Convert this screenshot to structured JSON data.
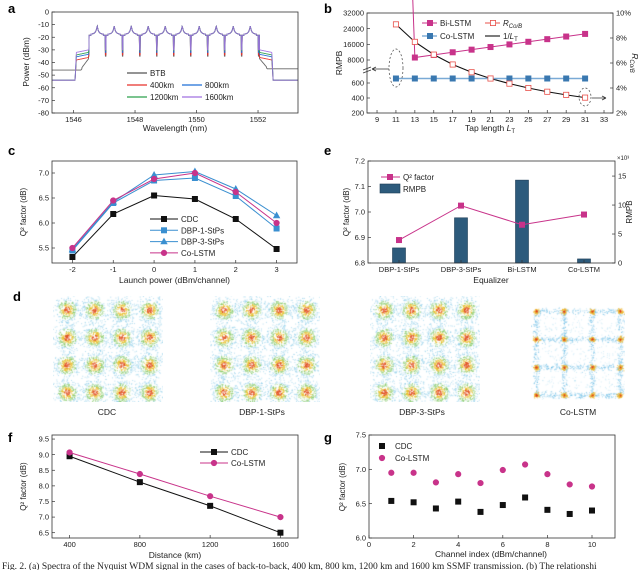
{
  "panel_labels": {
    "a": "a",
    "b": "b",
    "c": "c",
    "d": "d",
    "e": "e",
    "f": "f",
    "g": "g"
  },
  "caption": "Fig. 2. (a) Spectra of the Nyquist WDM signal in the cases of back-to-back, 400 km, 800 km, 1200 km and 1600 km SSMF transmission. (b) The relationshi",
  "chart_data": [
    {
      "panel": "a",
      "type": "line",
      "xlabel": "Wavelength (nm)",
      "ylabel": "Power (dBm)",
      "xlim": [
        1545.3,
        1553.3
      ],
      "ylim": [
        -80,
        0
      ],
      "xticks": [
        "1546",
        "1548",
        "1550",
        "1552"
      ],
      "yticks": [
        "0",
        "-10",
        "-20",
        "-30",
        "-40",
        "-50",
        "-60",
        "-70",
        "-80"
      ],
      "legend_placement": "bottom-center",
      "channel_count": 10,
      "channel_peak_dbm": -11,
      "channel_plateau_dbm": -17.5,
      "band_nm": [
        1546.49,
        1552.05
      ],
      "series": [
        {
          "name": "BTB",
          "color": "#555555",
          "floor_dbm": -46,
          "shoulder_dbm": -37,
          "notch_dbm": -35
        },
        {
          "name": "400km",
          "color": "#e8302a",
          "floor_dbm": -54,
          "shoulder_dbm": -36,
          "notch_dbm": -34
        },
        {
          "name": "800km",
          "color": "#1f6fd6",
          "floor_dbm": -54,
          "shoulder_dbm": -33.5,
          "notch_dbm": -32
        },
        {
          "name": "1200km",
          "color": "#2ca04c",
          "floor_dbm": -54,
          "shoulder_dbm": -32,
          "notch_dbm": -30.5
        },
        {
          "name": "1600km",
          "color": "#a070e0",
          "floor_dbm": -54,
          "shoulder_dbm": -30,
          "notch_dbm": -30
        }
      ]
    },
    {
      "panel": "b",
      "type": "line",
      "xlabel_main": "Tap length ",
      "xlabel_var": "L",
      "xlabel_sub": "T",
      "ylabel_left": "RMPB",
      "ylabel_right_main": "R",
      "ylabel_right_sub": "Co/B",
      "x": [
        11,
        13,
        15,
        17,
        19,
        21,
        23,
        25,
        27,
        29,
        31
      ],
      "xticks": [
        "9",
        "11",
        "13",
        "15",
        "17",
        "19",
        "21",
        "23",
        "25",
        "27",
        "29",
        "31",
        "33"
      ],
      "yticks_left": [
        "200",
        "400",
        "600",
        "8000",
        "16000",
        "24000",
        "32000"
      ],
      "yticks_right": [
        "2%",
        "4%",
        "6%",
        "8%",
        "10%"
      ],
      "ylim_right": [
        2,
        10
      ],
      "left_axis_break": [
        700,
        8000
      ],
      "legend_placement": "top",
      "series": [
        {
          "name": "Bi-LSTM",
          "axis": "left",
          "color": "#c8338a",
          "values": [
            7920,
            9260,
            10600,
            11940,
            13280,
            14620,
            15960,
            17300,
            18640,
            19980,
            21320
          ]
        },
        {
          "name": "Co-LSTM",
          "axis": "left",
          "color": "#3a78b0",
          "values": [
            660,
            660,
            660,
            660,
            660,
            660,
            660,
            660,
            660,
            660,
            660
          ]
        },
        {
          "name_main": "R",
          "name_sub": "Co/B",
          "axis": "right",
          "color": "#e8504a",
          "values": [
            9.09,
            7.69,
            6.67,
            5.88,
            5.26,
            4.76,
            4.35,
            4.0,
            3.7,
            3.45,
            3.23
          ]
        },
        {
          "name_main": "1/",
          "name_var": "L",
          "name_sub": "T",
          "axis": "right",
          "color": "#111111",
          "values": [
            9.09,
            7.69,
            6.67,
            5.88,
            5.26,
            4.76,
            4.35,
            4.0,
            3.7,
            3.45,
            3.23
          ]
        }
      ]
    },
    {
      "panel": "c",
      "type": "line",
      "xlabel": "Launch power (dBm/channel)",
      "ylabel": "Q² factor (dB)",
      "x": [
        -2,
        -1,
        0,
        1,
        2,
        3
      ],
      "xticks": [
        "-2",
        "-1",
        "0",
        "1",
        "2",
        "3"
      ],
      "yticks": [
        "5.5",
        "6.0",
        "6.5",
        "7.0"
      ],
      "xlim": [
        -2.5,
        3.5
      ],
      "ylim": [
        5.2,
        7.24
      ],
      "legend_placement": "bottom-center",
      "series": [
        {
          "name": "CDC",
          "color": "#111111",
          "marker": "square",
          "values": [
            5.32,
            6.18,
            6.55,
            6.48,
            6.08,
            5.48
          ]
        },
        {
          "name": "DBP-1-StPs",
          "color": "#3a8fd0",
          "marker": "square",
          "values": [
            5.45,
            6.4,
            6.85,
            6.9,
            6.54,
            5.89
          ]
        },
        {
          "name": "DBP-3-StPs",
          "color": "#3a8fd0",
          "marker": "triangle",
          "values": [
            5.47,
            6.42,
            6.96,
            7.03,
            6.68,
            6.15
          ]
        },
        {
          "name": "Co-LSTM",
          "color": "#c8338a",
          "marker": "circle",
          "values": [
            5.5,
            6.45,
            6.88,
            7.0,
            6.62,
            6.0
          ]
        }
      ]
    },
    {
      "panel": "d",
      "type": "scatter",
      "constellations": [
        {
          "label": "CDC"
        },
        {
          "label": "DBP-1-StPs"
        },
        {
          "label": "DBP-3-StPs"
        },
        {
          "label": "Co-LSTM"
        }
      ]
    },
    {
      "panel": "e",
      "type": "bar",
      "xlabel": "Equalizer",
      "ylabel_left": "Q² factor (dB)",
      "ylabel_right": "RMPB",
      "right_multiplier": "×10³",
      "categories": [
        "DBP-1-StPs",
        "DBP-3-StPs",
        "Bi-LSTM",
        "Co-LSTM"
      ],
      "yticks_left": [
        "6.8",
        "6.9",
        "7.0",
        "7.1",
        "7.2"
      ],
      "yticks_right": [
        "0",
        "5",
        "10",
        "15"
      ],
      "ylim_left": [
        6.8,
        7.2
      ],
      "ylim_right": [
        0,
        17.6
      ],
      "legend_placement": "top-left",
      "series": [
        {
          "name": "Q² factor",
          "type": "line",
          "color": "#c8338a",
          "values": [
            6.89,
            7.025,
            6.95,
            6.99
          ]
        },
        {
          "name": "RMPB",
          "type": "bar",
          "color": "#2d5b7c",
          "values": [
            2.6,
            7.8,
            14.3,
            0.7
          ]
        }
      ]
    },
    {
      "panel": "f",
      "type": "line",
      "xlabel": "Distance (km)",
      "ylabel": "Q² factor (dB)",
      "x": [
        400,
        800,
        1200,
        1600
      ],
      "xticks": [
        "400",
        "800",
        "1200",
        "1600"
      ],
      "yticks": [
        "6.5",
        "7.0",
        "7.5",
        "8.0",
        "8.5",
        "9.0",
        "9.5"
      ],
      "xlim": [
        300,
        1700
      ],
      "ylim": [
        6.33,
        9.63
      ],
      "legend_placement": "top-right",
      "series": [
        {
          "name": "CDC",
          "color": "#111111",
          "marker": "square",
          "values": [
            8.95,
            8.12,
            7.36,
            6.5
          ]
        },
        {
          "name": "Co-LSTM",
          "color": "#c8338a",
          "marker": "circle",
          "values": [
            9.07,
            8.38,
            7.67,
            7.0
          ]
        }
      ]
    },
    {
      "panel": "g",
      "type": "scatter",
      "xlabel": "Channel index (dBm/channel)",
      "ylabel": "Q² factor (dB)",
      "x": [
        1,
        2,
        3,
        4,
        5,
        6,
        7,
        8,
        9,
        10
      ],
      "xticks": [
        "0",
        "2",
        "4",
        "6",
        "8",
        "10"
      ],
      "yticks": [
        "6.0",
        "6.5",
        "7.0",
        "7.5"
      ],
      "xlim": [
        0,
        11
      ],
      "ylim": [
        6.0,
        7.5
      ],
      "legend_placement": "top-left",
      "series": [
        {
          "name": "CDC",
          "color": "#111111",
          "marker": "square",
          "values": [
            6.54,
            6.52,
            6.43,
            6.53,
            6.38,
            6.48,
            6.59,
            6.41,
            6.35,
            6.4
          ]
        },
        {
          "name": "Co-LSTM",
          "color": "#c8338a",
          "marker": "circle",
          "values": [
            6.95,
            6.95,
            6.81,
            6.93,
            6.8,
            6.99,
            7.07,
            6.93,
            6.78,
            6.75
          ]
        }
      ]
    }
  ]
}
